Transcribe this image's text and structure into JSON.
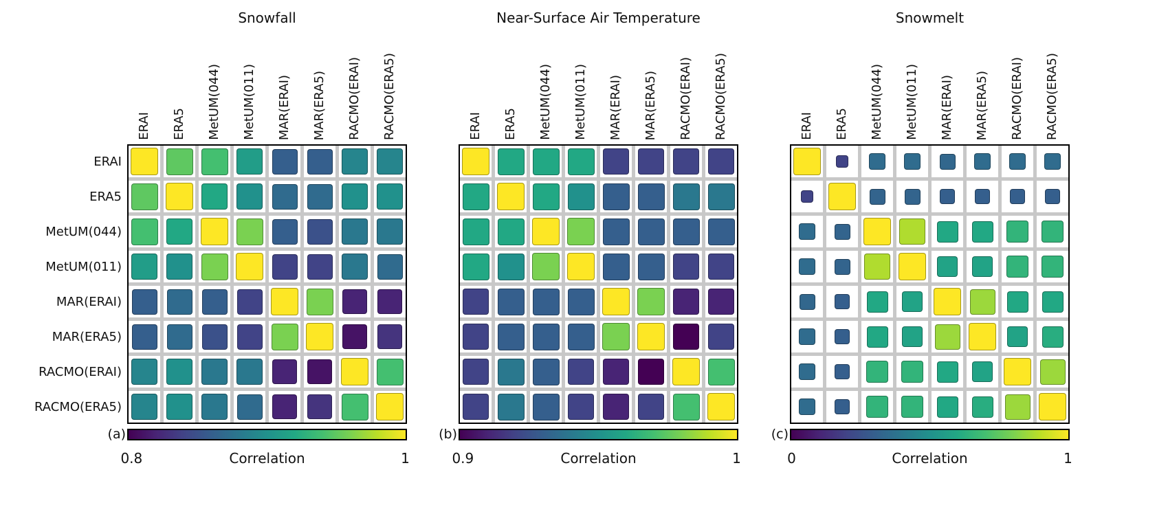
{
  "colorbar_label": "Correlation",
  "models": [
    "ERAI",
    "ERA5",
    "MetUM(044)",
    "MetUM(011)",
    "MAR(ERAI)",
    "MAR(ERA5)",
    "RACMO(ERAI)",
    "RACMO(ERA5)"
  ],
  "style": {
    "viridis_stops": [
      "#440154",
      "#482475",
      "#414487",
      "#355f8d",
      "#2a788e",
      "#21918c",
      "#22a884",
      "#44bf70",
      "#7ad151",
      "#bddf26",
      "#fde725"
    ],
    "gridline_color": "#c8c8c8",
    "frame_color": "#000000"
  },
  "chart_data": [
    {
      "type": "heatmap",
      "panel_letter": "(a)",
      "title": "Snowfall",
      "colormap": "viridis",
      "colorbar_label": "Correlation",
      "vmin": 0.8,
      "vmax": 1,
      "tick_labels": [
        "0.8",
        "1"
      ],
      "categories": [
        "ERAI",
        "ERA5",
        "MetUM(044)",
        "MetUM(011)",
        "MAR(ERAI)",
        "MAR(ERA5)",
        "RACMO(ERAI)",
        "RACMO(ERA5)"
      ],
      "matrix": [
        [
          1.0,
          0.95,
          0.94,
          0.91,
          0.86,
          0.86,
          0.89,
          0.89
        ],
        [
          0.95,
          1.0,
          0.92,
          0.9,
          0.87,
          0.87,
          0.9,
          0.9
        ],
        [
          0.94,
          0.92,
          1.0,
          0.96,
          0.86,
          0.85,
          0.88,
          0.88
        ],
        [
          0.91,
          0.9,
          0.96,
          1.0,
          0.84,
          0.84,
          0.88,
          0.87
        ],
        [
          0.86,
          0.87,
          0.86,
          0.84,
          1.0,
          0.96,
          0.82,
          0.82
        ],
        [
          0.86,
          0.87,
          0.85,
          0.84,
          0.96,
          1.0,
          0.81,
          0.83
        ],
        [
          0.89,
          0.9,
          0.88,
          0.88,
          0.82,
          0.81,
          1.0,
          0.94
        ],
        [
          0.89,
          0.9,
          0.88,
          0.87,
          0.82,
          0.83,
          0.94,
          1.0
        ]
      ]
    },
    {
      "type": "heatmap",
      "panel_letter": "(b)",
      "title": "Near-Surface Air Temperature",
      "colormap": "viridis",
      "colorbar_label": "Correlation",
      "vmin": 0.9,
      "vmax": 1,
      "tick_labels": [
        "0.9",
        "1"
      ],
      "categories": [
        "ERAI",
        "ERA5",
        "MetUM(044)",
        "MetUM(011)",
        "MAR(ERAI)",
        "MAR(ERA5)",
        "RACMO(ERAI)",
        "RACMO(ERA5)"
      ],
      "matrix": [
        [
          1.0,
          0.96,
          0.96,
          0.96,
          0.92,
          0.92,
          0.92,
          0.92
        ],
        [
          0.96,
          1.0,
          0.96,
          0.95,
          0.93,
          0.93,
          0.94,
          0.94
        ],
        [
          0.96,
          0.96,
          1.0,
          0.98,
          0.93,
          0.93,
          0.93,
          0.93
        ],
        [
          0.96,
          0.95,
          0.98,
          1.0,
          0.93,
          0.93,
          0.92,
          0.92
        ],
        [
          0.92,
          0.93,
          0.93,
          0.93,
          1.0,
          0.98,
          0.91,
          0.91
        ],
        [
          0.92,
          0.93,
          0.93,
          0.93,
          0.98,
          1.0,
          0.9,
          0.92
        ],
        [
          0.92,
          0.94,
          0.93,
          0.92,
          0.91,
          0.9,
          1.0,
          0.97
        ],
        [
          0.92,
          0.94,
          0.93,
          0.92,
          0.91,
          0.92,
          0.97,
          1.0
        ]
      ]
    },
    {
      "type": "heatmap",
      "panel_letter": "(c)",
      "title": "Snowmelt",
      "colormap": "viridis",
      "colorbar_label": "Correlation",
      "vmin": 0,
      "vmax": 1,
      "tick_labels": [
        "0",
        "1"
      ],
      "categories": [
        "ERAI",
        "ERA5",
        "MetUM(044)",
        "MetUM(011)",
        "MAR(ERAI)",
        "MAR(ERA5)",
        "RACMO(ERAI)",
        "RACMO(ERA5)"
      ],
      "matrix": [
        [
          1.0,
          0.2,
          0.35,
          0.35,
          0.33,
          0.35,
          0.35,
          0.35
        ],
        [
          0.2,
          1.0,
          0.32,
          0.32,
          0.3,
          0.3,
          0.3,
          0.3
        ],
        [
          0.35,
          0.32,
          1.0,
          0.88,
          0.6,
          0.6,
          0.65,
          0.65
        ],
        [
          0.35,
          0.32,
          0.88,
          1.0,
          0.58,
          0.58,
          0.65,
          0.65
        ],
        [
          0.33,
          0.3,
          0.6,
          0.58,
          1.0,
          0.85,
          0.6,
          0.6
        ],
        [
          0.35,
          0.3,
          0.6,
          0.58,
          0.85,
          1.0,
          0.58,
          0.62
        ],
        [
          0.35,
          0.3,
          0.65,
          0.65,
          0.6,
          0.58,
          1.0,
          0.85
        ],
        [
          0.35,
          0.3,
          0.65,
          0.65,
          0.6,
          0.62,
          0.85,
          1.0
        ]
      ]
    }
  ]
}
